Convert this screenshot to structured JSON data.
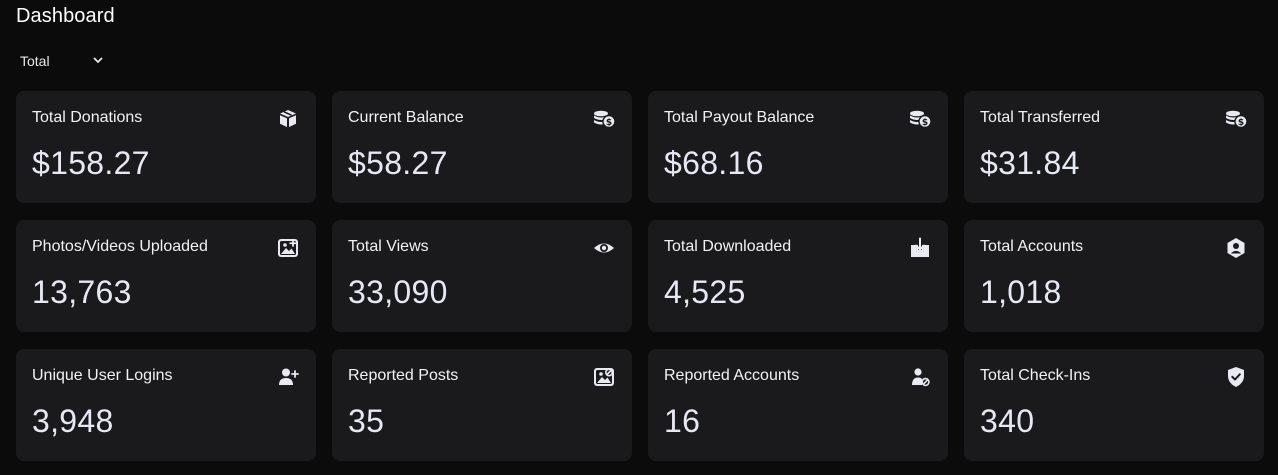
{
  "header": {
    "title": "Dashboard"
  },
  "filter": {
    "selected": "Total",
    "icon": "chevron-down-icon"
  },
  "colors": {
    "background": "#0b0b0c",
    "card": "#1a1a1c",
    "icon": "#e8e9f2"
  },
  "cards": [
    {
      "label": "Total Donations",
      "value": "$158.27",
      "icon": "gift-box-icon"
    },
    {
      "label": "Current Balance",
      "value": "$58.27",
      "icon": "coins-dollar-icon"
    },
    {
      "label": "Total Payout Balance",
      "value": "$68.16",
      "icon": "coins-dollar-icon"
    },
    {
      "label": "Total Transferred",
      "value": "$31.84",
      "icon": "coins-dollar-icon"
    },
    {
      "label": "Photos/Videos Uploaded",
      "value": "13,763",
      "icon": "image-add-icon"
    },
    {
      "label": "Total Views",
      "value": "33,090",
      "icon": "eye-icon"
    },
    {
      "label": "Total Downloaded",
      "value": "4,525",
      "icon": "download-tray-icon"
    },
    {
      "label": "Total Accounts",
      "value": "1,018",
      "icon": "user-hexagon-icon"
    },
    {
      "label": "Unique User Logins",
      "value": "3,948",
      "icon": "user-plus-icon"
    },
    {
      "label": "Reported Posts",
      "value": "35",
      "icon": "image-alert-icon"
    },
    {
      "label": "Reported Accounts",
      "value": "16",
      "icon": "user-block-icon"
    },
    {
      "label": "Total Check-Ins",
      "value": "340",
      "icon": "shield-check-icon"
    }
  ]
}
